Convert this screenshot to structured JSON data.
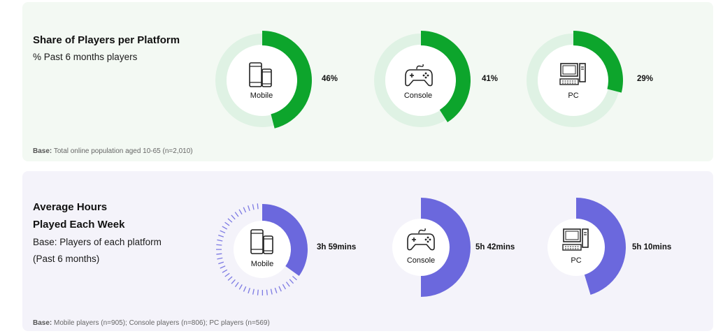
{
  "colors": {
    "share_fill": "#0da52c",
    "share_track": "#dff2e4",
    "hours_fill": "#6b68dd",
    "hours_tick": "#7d7ae3",
    "center": "#ffffff",
    "top_bg": "#f3f9f3",
    "bottom_bg": "#f4f3fa"
  },
  "top": {
    "title": "Share of Players per Platform",
    "subtitle": "% Past 6 months players",
    "base_bold": "Base:",
    "base_text": " Total online population aged 10-65 (n=2,010)"
  },
  "bottom": {
    "title_line1": "Average Hours",
    "title_line2": "Played Each Week",
    "subtitle_line1": "Base: Players of each platform",
    "subtitle_line2": "(Past 6 months)",
    "base_bold": "Base:",
    "base_text": " Mobile players (n=905); Console players (n=806); PC players (n=569)"
  },
  "icons": [
    "mobile-icon",
    "console-icon",
    "pc-icon"
  ],
  "chart_data": [
    {
      "type": "pie",
      "categories": [
        "Mobile",
        "Console",
        "PC"
      ],
      "values": [
        46,
        41,
        29
      ],
      "value_labels": [
        "46%",
        "41%",
        "29%"
      ],
      "unit": "%",
      "max": 100
    },
    {
      "type": "pie",
      "categories": [
        "Mobile",
        "Console",
        "PC"
      ],
      "values": [
        239,
        342,
        310
      ],
      "value_labels": [
        "3h 59mins",
        "5h 42mins",
        "5h 10mins"
      ],
      "unit": "mins"
    }
  ]
}
